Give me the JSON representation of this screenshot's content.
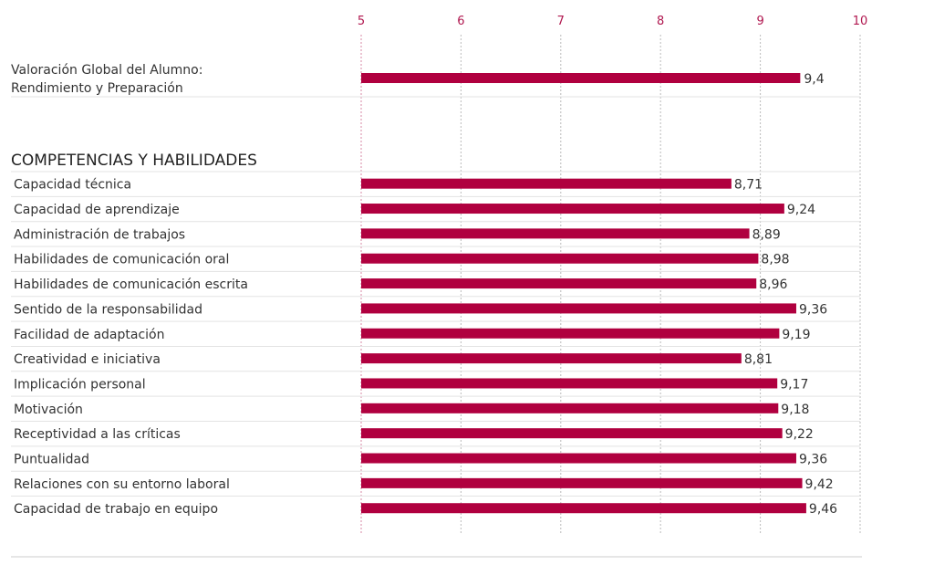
{
  "chart_data": {
    "type": "bar",
    "orientation": "horizontal",
    "xlim": [
      5,
      10
    ],
    "xticks": [
      "5",
      "6",
      "7",
      "8",
      "9",
      "10"
    ],
    "grid": true,
    "bar_color": "#b0003f",
    "tick_color": "#b0174f",
    "overall": {
      "label_line1": "Valoración Global del Alumno:",
      "label_line2": "Rendimiento y Preparación",
      "value": 9.4,
      "value_label": "9,4"
    },
    "section_title": "COMPETENCIAS Y HABILIDADES",
    "categories": [
      "Capacidad técnica",
      "Capacidad de aprendizaje",
      "Administración de trabajos",
      "Habilidades de comunicación oral",
      "Habilidades de comunicación escrita",
      "Sentido de la responsabilidad",
      "Facilidad de adaptación",
      "Creatividad e iniciativa",
      "Implicación personal",
      "Motivación",
      "Receptividad a las críticas",
      "Puntualidad",
      "Relaciones con su entorno laboral",
      "Capacidad de trabajo en equipo"
    ],
    "values": [
      8.71,
      9.24,
      8.89,
      8.98,
      8.96,
      9.36,
      9.19,
      8.81,
      9.17,
      9.18,
      9.22,
      9.36,
      9.42,
      9.46
    ],
    "value_labels": [
      "8,71",
      "9,24",
      "8,89",
      "8,98",
      "8,96",
      "9,36",
      "9,19",
      "8,81",
      "9,17",
      "9,18",
      "9,22",
      "9,36",
      "9,42",
      "9,46"
    ]
  }
}
